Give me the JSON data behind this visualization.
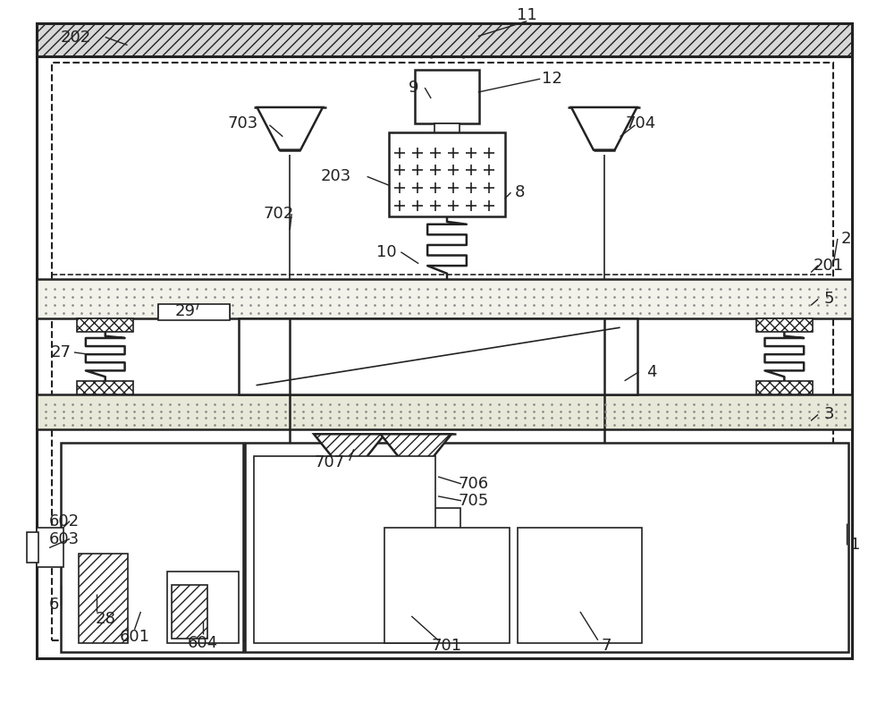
{
  "bg_color": "#ffffff",
  "line_color": "#222222",
  "figsize": [
    10.0,
    7.86
  ],
  "dpi": 100,
  "lw_main": 1.8,
  "lw_thin": 1.2,
  "lw_thick": 2.2
}
